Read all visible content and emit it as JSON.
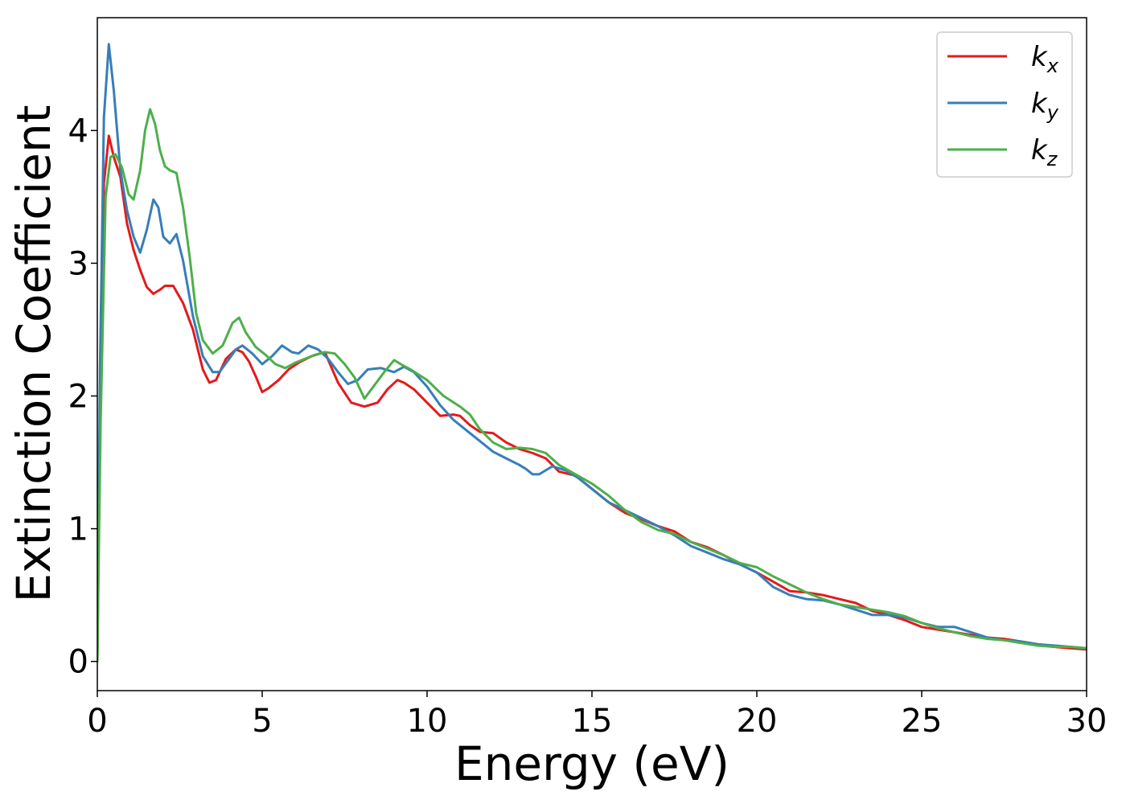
{
  "chart_data": {
    "type": "line",
    "xlabel": "Energy (eV)",
    "ylabel": "Extinction Coefficient",
    "xlim": [
      0,
      30
    ],
    "ylim": [
      -0.22,
      4.85
    ],
    "xticks": [
      0,
      5,
      10,
      15,
      20,
      25,
      30
    ],
    "yticks": [
      0,
      1,
      2,
      3,
      4
    ],
    "xtick_labels": [
      "0",
      "5",
      "10",
      "15",
      "20",
      "25",
      "30"
    ],
    "ytick_labels": [
      "0",
      "1",
      "2",
      "3",
      "4"
    ],
    "grid": false,
    "legend_position": "top-right",
    "series": [
      {
        "name": "k_x",
        "legend_base": "k",
        "legend_sub": "x",
        "color": "#e41a1c",
        "x": [
          0,
          0.1,
          0.2,
          0.35,
          0.5,
          0.7,
          0.9,
          1.1,
          1.3,
          1.5,
          1.7,
          1.9,
          2.05,
          2.3,
          2.6,
          2.9,
          3.2,
          3.4,
          3.6,
          3.9,
          4.2,
          4.4,
          4.6,
          4.8,
          5.0,
          5.2,
          5.5,
          5.8,
          6.1,
          6.5,
          6.9,
          7.3,
          7.7,
          8.1,
          8.5,
          8.8,
          9.1,
          9.3,
          9.6,
          10.0,
          10.4,
          10.8,
          11.0,
          11.3,
          11.6,
          12.0,
          12.4,
          12.8,
          13.2,
          13.6,
          14.0,
          14.5,
          15.0,
          15.5,
          16.0,
          16.5,
          17.0,
          17.5,
          18.0,
          18.5,
          19.0,
          19.5,
          20.0,
          20.5,
          21.0,
          21.5,
          22.0,
          22.5,
          23.0,
          23.5,
          24.0,
          24.5,
          25.0,
          25.5,
          26.0,
          26.5,
          27.0,
          27.5,
          28.0,
          28.5,
          29.0,
          29.5,
          30.0
        ],
        "values": [
          0,
          2.2,
          3.6,
          3.96,
          3.8,
          3.65,
          3.3,
          3.1,
          2.95,
          2.82,
          2.77,
          2.8,
          2.83,
          2.83,
          2.7,
          2.5,
          2.2,
          2.1,
          2.12,
          2.28,
          2.35,
          2.33,
          2.26,
          2.15,
          2.03,
          2.06,
          2.12,
          2.2,
          2.25,
          2.3,
          2.33,
          2.1,
          1.95,
          1.92,
          1.95,
          2.05,
          2.12,
          2.1,
          2.05,
          1.95,
          1.85,
          1.86,
          1.85,
          1.78,
          1.73,
          1.72,
          1.65,
          1.6,
          1.57,
          1.53,
          1.43,
          1.4,
          1.3,
          1.2,
          1.12,
          1.07,
          1.02,
          0.98,
          0.9,
          0.86,
          0.8,
          0.73,
          0.67,
          0.6,
          0.53,
          0.52,
          0.5,
          0.47,
          0.44,
          0.38,
          0.35,
          0.31,
          0.26,
          0.24,
          0.22,
          0.2,
          0.18,
          0.17,
          0.15,
          0.13,
          0.11,
          0.1,
          0.09
        ]
      },
      {
        "name": "k_y",
        "legend_base": "k",
        "legend_sub": "y",
        "color": "#377eb8",
        "x": [
          0,
          0.08,
          0.2,
          0.35,
          0.5,
          0.7,
          0.9,
          1.1,
          1.3,
          1.5,
          1.7,
          1.85,
          2.0,
          2.2,
          2.4,
          2.6,
          2.9,
          3.2,
          3.5,
          3.7,
          4.0,
          4.2,
          4.4,
          4.7,
          5.0,
          5.3,
          5.6,
          5.9,
          6.1,
          6.4,
          6.7,
          7.0,
          7.3,
          7.6,
          7.9,
          8.2,
          8.6,
          9.0,
          9.3,
          9.6,
          10.0,
          10.4,
          10.8,
          11.2,
          11.6,
          12.0,
          12.4,
          12.8,
          13.0,
          13.2,
          13.4,
          13.8,
          14.2,
          14.6,
          15.0,
          15.5,
          16.0,
          16.5,
          17.0,
          17.5,
          18.0,
          18.5,
          19.0,
          19.5,
          20.0,
          20.5,
          21.0,
          21.5,
          22.0,
          22.5,
          23.0,
          23.5,
          24.0,
          24.5,
          25.0,
          25.5,
          26.0,
          26.5,
          27.0,
          27.5,
          28.0,
          28.5,
          29.0,
          29.5,
          30.0
        ],
        "values": [
          0,
          2.2,
          4.1,
          4.65,
          4.3,
          3.7,
          3.4,
          3.2,
          3.08,
          3.25,
          3.48,
          3.42,
          3.2,
          3.15,
          3.22,
          3.02,
          2.6,
          2.3,
          2.18,
          2.18,
          2.28,
          2.35,
          2.38,
          2.32,
          2.24,
          2.3,
          2.38,
          2.33,
          2.32,
          2.38,
          2.35,
          2.28,
          2.18,
          2.09,
          2.12,
          2.2,
          2.21,
          2.18,
          2.22,
          2.18,
          2.07,
          1.93,
          1.82,
          1.74,
          1.66,
          1.58,
          1.53,
          1.48,
          1.45,
          1.41,
          1.41,
          1.47,
          1.44,
          1.38,
          1.3,
          1.2,
          1.14,
          1.08,
          1.02,
          0.95,
          0.87,
          0.82,
          0.77,
          0.73,
          0.67,
          0.56,
          0.5,
          0.47,
          0.46,
          0.43,
          0.39,
          0.35,
          0.35,
          0.33,
          0.29,
          0.26,
          0.26,
          0.22,
          0.18,
          0.16,
          0.15,
          0.13,
          0.12,
          0.11,
          0.1
        ]
      },
      {
        "name": "k_z",
        "legend_base": "k",
        "legend_sub": "z",
        "color": "#4daf4a",
        "x": [
          0,
          0.1,
          0.25,
          0.4,
          0.55,
          0.75,
          0.95,
          1.1,
          1.3,
          1.45,
          1.6,
          1.75,
          1.9,
          2.05,
          2.2,
          2.4,
          2.6,
          2.8,
          3.0,
          3.2,
          3.5,
          3.8,
          4.1,
          4.3,
          4.5,
          4.8,
          5.1,
          5.4,
          5.7,
          6.0,
          6.3,
          6.6,
          6.9,
          7.2,
          7.5,
          7.8,
          8.1,
          8.4,
          8.7,
          9.0,
          9.2,
          9.5,
          10.0,
          10.5,
          11.0,
          11.3,
          11.6,
          12.0,
          12.4,
          12.8,
          13.2,
          13.6,
          14.0,
          14.5,
          15.0,
          15.5,
          16.0,
          16.5,
          17.0,
          17.5,
          18.0,
          18.5,
          19.0,
          19.5,
          20.0,
          20.5,
          21.0,
          21.5,
          22.0,
          22.5,
          23.0,
          23.5,
          24.0,
          24.5,
          25.0,
          25.5,
          26.0,
          26.5,
          27.0,
          27.5,
          28.0,
          28.5,
          29.0,
          29.5,
          30.0
        ],
        "values": [
          0,
          1.8,
          3.5,
          3.8,
          3.82,
          3.72,
          3.52,
          3.48,
          3.7,
          4.0,
          4.16,
          4.05,
          3.85,
          3.73,
          3.7,
          3.68,
          3.42,
          3.05,
          2.62,
          2.42,
          2.32,
          2.38,
          2.55,
          2.59,
          2.48,
          2.37,
          2.31,
          2.24,
          2.21,
          2.25,
          2.28,
          2.31,
          2.33,
          2.32,
          2.24,
          2.14,
          1.98,
          2.08,
          2.18,
          2.27,
          2.24,
          2.2,
          2.12,
          2.0,
          1.92,
          1.86,
          1.75,
          1.65,
          1.6,
          1.61,
          1.6,
          1.57,
          1.48,
          1.41,
          1.34,
          1.25,
          1.14,
          1.05,
          0.99,
          0.96,
          0.9,
          0.85,
          0.8,
          0.74,
          0.71,
          0.64,
          0.58,
          0.52,
          0.47,
          0.43,
          0.41,
          0.39,
          0.37,
          0.34,
          0.29,
          0.25,
          0.22,
          0.19,
          0.17,
          0.16,
          0.14,
          0.12,
          0.11,
          0.11,
          0.1
        ]
      }
    ]
  }
}
